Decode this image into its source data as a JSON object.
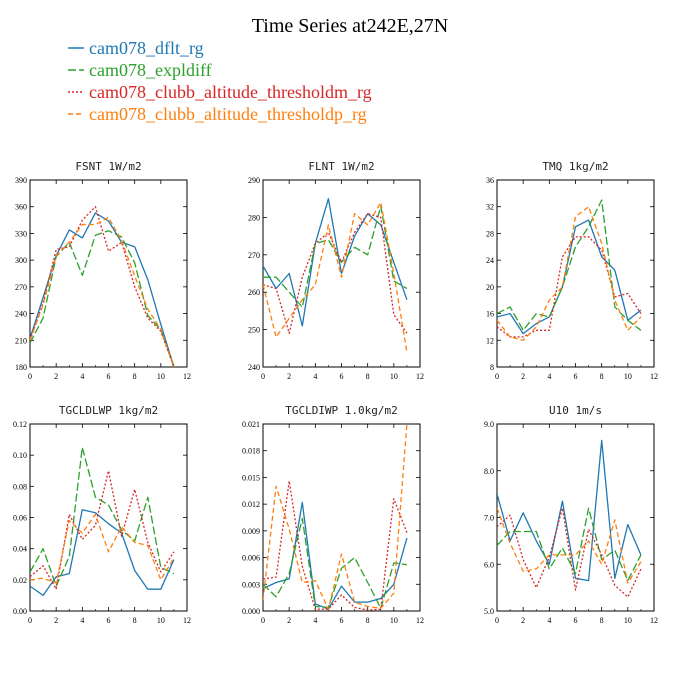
{
  "title": "Time Series at242E,27N",
  "legend": [
    {
      "label": "cam078_dflt_rg",
      "color": "#1f77b4",
      "dash": "solid"
    },
    {
      "label": "cam078_expldiff",
      "color": "#2ca02c",
      "dash": "longdash"
    },
    {
      "label": "cam078_clubb_altitude_thresholdm_rg",
      "color": "#d62728",
      "dash": "dot"
    },
    {
      "label": "cam078_clubb_altitude_thresholdp_rg",
      "color": "#ff7f0e",
      "dash": "dash"
    }
  ],
  "chart_data": [
    {
      "type": "line",
      "title": "FSNT   1W/m2",
      "x": [
        0,
        1,
        2,
        3,
        4,
        5,
        6,
        7,
        8,
        9,
        10,
        11
      ],
      "xlim": [
        0,
        12
      ],
      "xticks": [
        0,
        2,
        4,
        6,
        8,
        10,
        12
      ],
      "ylim": [
        180,
        390
      ],
      "yticks": [
        "180",
        "210",
        "240",
        "270",
        "300",
        "330",
        "360",
        "390"
      ],
      "series": [
        {
          "name": "cam078_dflt_rg",
          "values": [
            212,
            258,
            305,
            334,
            325,
            353,
            344,
            320,
            315,
            278,
            228,
            180
          ]
        },
        {
          "name": "cam078_expldiff",
          "values": [
            207,
            235,
            304,
            320,
            283,
            328,
            333,
            326,
            297,
            238,
            222,
            180
          ]
        },
        {
          "name": "cam078_clubb_altitude_thresholdm_rg",
          "values": [
            210,
            252,
            312,
            315,
            345,
            360,
            310,
            320,
            270,
            235,
            220,
            180
          ]
        },
        {
          "name": "cam078_clubb_altitude_thresholdp_rg",
          "values": [
            210,
            250,
            305,
            320,
            340,
            340,
            348,
            322,
            282,
            245,
            222,
            180
          ]
        }
      ]
    },
    {
      "type": "line",
      "title": "FLNT   1W/m2",
      "x": [
        0,
        1,
        2,
        3,
        4,
        5,
        6,
        7,
        8,
        9,
        10,
        11
      ],
      "xlim": [
        0,
        12
      ],
      "xticks": [
        0,
        2,
        4,
        6,
        8,
        10,
        12
      ],
      "ylim": [
        240,
        290
      ],
      "yticks": [
        "240",
        "250",
        "260",
        "270",
        "280",
        "290"
      ],
      "series": [
        {
          "name": "cam078_dflt_rg",
          "values": [
            267,
            261,
            265,
            251,
            273,
            285,
            265,
            275,
            281,
            278,
            268,
            258
          ]
        },
        {
          "name": "cam078_expldiff",
          "values": [
            264,
            264,
            260,
            256,
            273,
            274,
            268,
            272,
            270,
            283,
            263,
            261
          ]
        },
        {
          "name": "cam078_clubb_altitude_thresholdm_rg",
          "values": [
            262,
            261,
            249,
            264,
            273,
            276,
            268,
            276,
            281,
            280,
            254,
            249
          ]
        },
        {
          "name": "cam078_clubb_altitude_thresholdp_rg",
          "values": [
            262,
            248,
            253,
            258,
            262,
            278,
            264,
            281,
            278,
            284,
            265,
            244
          ]
        }
      ]
    },
    {
      "type": "line",
      "title": "TMQ   1kg/m2",
      "x": [
        0,
        1,
        2,
        3,
        4,
        5,
        6,
        7,
        8,
        9,
        10,
        11
      ],
      "xlim": [
        0,
        12
      ],
      "xticks": [
        0,
        2,
        4,
        6,
        8,
        10,
        12
      ],
      "ylim": [
        8,
        36
      ],
      "yticks": [
        "8",
        "12",
        "16",
        "20",
        "24",
        "28",
        "32",
        "36"
      ],
      "series": [
        {
          "name": "cam078_dflt_rg",
          "values": [
            15.5,
            16.0,
            13.0,
            14.5,
            15.5,
            20.0,
            29.0,
            30.0,
            24.5,
            22.5,
            15.0,
            16.5
          ]
        },
        {
          "name": "cam078_expldiff",
          "values": [
            16.0,
            17.0,
            13.5,
            16.0,
            15.5,
            20.0,
            26.0,
            29.0,
            33.0,
            17.0,
            15.0,
            13.5
          ]
        },
        {
          "name": "cam078_clubb_altitude_thresholdm_rg",
          "values": [
            14.0,
            12.5,
            12.5,
            13.5,
            13.5,
            24.5,
            27.5,
            27.5,
            25.5,
            18.5,
            19.0,
            16.0
          ]
        },
        {
          "name": "cam078_clubb_altitude_thresholdp_rg",
          "values": [
            15.0,
            12.5,
            12.0,
            14.0,
            18.0,
            20.0,
            30.5,
            32.0,
            26.5,
            18.0,
            13.5,
            15.5
          ]
        }
      ]
    },
    {
      "type": "line",
      "title": "TGCLDLWP   1kg/m2",
      "x": [
        0,
        1,
        2,
        3,
        4,
        5,
        6,
        7,
        8,
        9,
        10,
        11
      ],
      "xlim": [
        0,
        12
      ],
      "xticks": [
        0,
        2,
        4,
        6,
        8,
        10,
        12
      ],
      "ylim": [
        0,
        0.12
      ],
      "yticks": [
        "0.00",
        "0.02",
        "0.04",
        "0.06",
        "0.08",
        "0.10",
        "0.12"
      ],
      "series": [
        {
          "name": "cam078_dflt_rg",
          "values": [
            0.016,
            0.01,
            0.022,
            0.024,
            0.065,
            0.063,
            0.056,
            0.05,
            0.026,
            0.014,
            0.014,
            0.033
          ]
        },
        {
          "name": "cam078_expldiff",
          "values": [
            0.025,
            0.04,
            0.016,
            0.035,
            0.105,
            0.073,
            0.068,
            0.052,
            0.045,
            0.073,
            0.028,
            0.024
          ]
        },
        {
          "name": "cam078_clubb_altitude_thresholdm_rg",
          "values": [
            0.022,
            0.029,
            0.014,
            0.062,
            0.046,
            0.055,
            0.09,
            0.048,
            0.078,
            0.044,
            0.025,
            0.038
          ]
        },
        {
          "name": "cam078_clubb_altitude_thresholdp_rg",
          "values": [
            0.02,
            0.021,
            0.018,
            0.058,
            0.05,
            0.062,
            0.038,
            0.054,
            0.044,
            0.042,
            0.02,
            0.034
          ]
        }
      ]
    },
    {
      "type": "line",
      "title": "TGCLDIWP   1.0kg/m2",
      "x": [
        0,
        1,
        2,
        3,
        4,
        5,
        6,
        7,
        8,
        9,
        10,
        11
      ],
      "xlim": [
        0,
        12
      ],
      "xticks": [
        0,
        2,
        4,
        6,
        8,
        10,
        12
      ],
      "ylim": [
        0,
        0.021
      ],
      "yticks": [
        "0.000",
        "0.003",
        "0.006",
        "0.009",
        "0.012",
        "0.015",
        "0.018",
        "0.021"
      ],
      "series": [
        {
          "name": "cam078_dflt_rg",
          "values": [
            0.0025,
            0.0032,
            0.0036,
            0.0122,
            0.0008,
            0.0002,
            0.0028,
            0.001,
            0.001,
            0.0014,
            0.003,
            0.0082
          ]
        },
        {
          "name": "cam078_expldiff",
          "values": [
            0.003,
            0.0016,
            0.0042,
            0.0104,
            0.0005,
            0.0004,
            0.0048,
            0.006,
            0.0032,
            0.0003,
            0.0054,
            0.0052
          ]
        },
        {
          "name": "cam078_clubb_altitude_thresholdm_rg",
          "values": [
            0.0036,
            0.0038,
            0.0146,
            0.005,
            0.0002,
            0.0002,
            0.0018,
            0.0004,
            0.0001,
            0.0002,
            0.0126,
            0.0088
          ]
        },
        {
          "name": "cam078_clubb_altitude_thresholdp_rg",
          "values": [
            0.0012,
            0.014,
            0.0092,
            0.0032,
            0.0034,
            0.0002,
            0.0064,
            0.001,
            0.0005,
            0.0003,
            0.002,
            0.021
          ]
        }
      ]
    },
    {
      "type": "line",
      "title": "U10   1m/s",
      "x": [
        0,
        1,
        2,
        3,
        4,
        5,
        6,
        7,
        8,
        9,
        10,
        11
      ],
      "xlim": [
        0,
        12
      ],
      "xticks": [
        0,
        2,
        4,
        6,
        8,
        10,
        12
      ],
      "ylim": [
        5.0,
        9.0
      ],
      "yticks": [
        "5.0",
        "6.0",
        "7.0",
        "8.0",
        "9.0"
      ],
      "series": [
        {
          "name": "cam078_dflt_rg",
          "values": [
            7.5,
            6.5,
            7.1,
            6.5,
            6.0,
            7.35,
            5.7,
            5.65,
            8.65,
            5.7,
            6.85,
            6.2
          ]
        },
        {
          "name": "cam078_expldiff",
          "values": [
            6.4,
            6.7,
            6.7,
            6.7,
            5.9,
            6.35,
            5.8,
            7.2,
            6.1,
            6.3,
            5.65,
            6.2
          ]
        },
        {
          "name": "cam078_clubb_altitude_thresholdm_rg",
          "values": [
            6.8,
            7.05,
            6.1,
            5.5,
            6.15,
            7.2,
            5.45,
            6.75,
            6.2,
            5.55,
            5.3,
            5.9
          ]
        },
        {
          "name": "cam078_clubb_altitude_thresholdp_rg",
          "values": [
            7.2,
            6.45,
            5.85,
            5.9,
            6.2,
            6.2,
            6.2,
            6.5,
            6.0,
            6.95,
            5.6,
            6.05
          ]
        }
      ]
    }
  ]
}
